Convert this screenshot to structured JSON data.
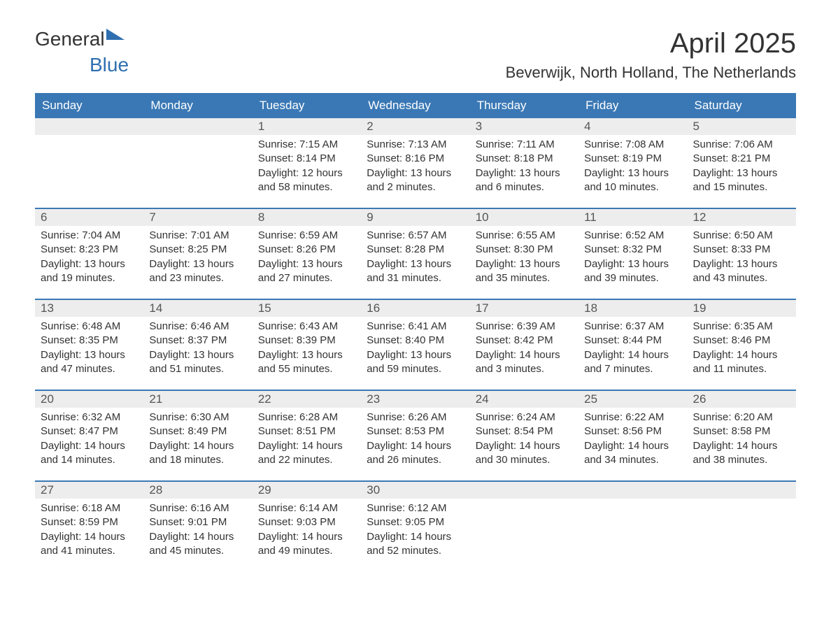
{
  "brand": {
    "part1": "General",
    "part2": "Blue"
  },
  "title": "April 2025",
  "location": "Beverwijk, North Holland, The Netherlands",
  "colors": {
    "header_bg": "#3a78b5",
    "header_text": "#ffffff",
    "daynum_bg": "#ededed",
    "text": "#333333",
    "accent": "#2f6fb0"
  },
  "day_labels": [
    "Sunday",
    "Monday",
    "Tuesday",
    "Wednesday",
    "Thursday",
    "Friday",
    "Saturday"
  ],
  "weeks": [
    [
      null,
      null,
      {
        "n": "1",
        "sr": "7:15 AM",
        "ss": "8:14 PM",
        "dl": "12 hours and 58 minutes."
      },
      {
        "n": "2",
        "sr": "7:13 AM",
        "ss": "8:16 PM",
        "dl": "13 hours and 2 minutes."
      },
      {
        "n": "3",
        "sr": "7:11 AM",
        "ss": "8:18 PM",
        "dl": "13 hours and 6 minutes."
      },
      {
        "n": "4",
        "sr": "7:08 AM",
        "ss": "8:19 PM",
        "dl": "13 hours and 10 minutes."
      },
      {
        "n": "5",
        "sr": "7:06 AM",
        "ss": "8:21 PM",
        "dl": "13 hours and 15 minutes."
      }
    ],
    [
      {
        "n": "6",
        "sr": "7:04 AM",
        "ss": "8:23 PM",
        "dl": "13 hours and 19 minutes."
      },
      {
        "n": "7",
        "sr": "7:01 AM",
        "ss": "8:25 PM",
        "dl": "13 hours and 23 minutes."
      },
      {
        "n": "8",
        "sr": "6:59 AM",
        "ss": "8:26 PM",
        "dl": "13 hours and 27 minutes."
      },
      {
        "n": "9",
        "sr": "6:57 AM",
        "ss": "8:28 PM",
        "dl": "13 hours and 31 minutes."
      },
      {
        "n": "10",
        "sr": "6:55 AM",
        "ss": "8:30 PM",
        "dl": "13 hours and 35 minutes."
      },
      {
        "n": "11",
        "sr": "6:52 AM",
        "ss": "8:32 PM",
        "dl": "13 hours and 39 minutes."
      },
      {
        "n": "12",
        "sr": "6:50 AM",
        "ss": "8:33 PM",
        "dl": "13 hours and 43 minutes."
      }
    ],
    [
      {
        "n": "13",
        "sr": "6:48 AM",
        "ss": "8:35 PM",
        "dl": "13 hours and 47 minutes."
      },
      {
        "n": "14",
        "sr": "6:46 AM",
        "ss": "8:37 PM",
        "dl": "13 hours and 51 minutes."
      },
      {
        "n": "15",
        "sr": "6:43 AM",
        "ss": "8:39 PM",
        "dl": "13 hours and 55 minutes."
      },
      {
        "n": "16",
        "sr": "6:41 AM",
        "ss": "8:40 PM",
        "dl": "13 hours and 59 minutes."
      },
      {
        "n": "17",
        "sr": "6:39 AM",
        "ss": "8:42 PM",
        "dl": "14 hours and 3 minutes."
      },
      {
        "n": "18",
        "sr": "6:37 AM",
        "ss": "8:44 PM",
        "dl": "14 hours and 7 minutes."
      },
      {
        "n": "19",
        "sr": "6:35 AM",
        "ss": "8:46 PM",
        "dl": "14 hours and 11 minutes."
      }
    ],
    [
      {
        "n": "20",
        "sr": "6:32 AM",
        "ss": "8:47 PM",
        "dl": "14 hours and 14 minutes."
      },
      {
        "n": "21",
        "sr": "6:30 AM",
        "ss": "8:49 PM",
        "dl": "14 hours and 18 minutes."
      },
      {
        "n": "22",
        "sr": "6:28 AM",
        "ss": "8:51 PM",
        "dl": "14 hours and 22 minutes."
      },
      {
        "n": "23",
        "sr": "6:26 AM",
        "ss": "8:53 PM",
        "dl": "14 hours and 26 minutes."
      },
      {
        "n": "24",
        "sr": "6:24 AM",
        "ss": "8:54 PM",
        "dl": "14 hours and 30 minutes."
      },
      {
        "n": "25",
        "sr": "6:22 AM",
        "ss": "8:56 PM",
        "dl": "14 hours and 34 minutes."
      },
      {
        "n": "26",
        "sr": "6:20 AM",
        "ss": "8:58 PM",
        "dl": "14 hours and 38 minutes."
      }
    ],
    [
      {
        "n": "27",
        "sr": "6:18 AM",
        "ss": "8:59 PM",
        "dl": "14 hours and 41 minutes."
      },
      {
        "n": "28",
        "sr": "6:16 AM",
        "ss": "9:01 PM",
        "dl": "14 hours and 45 minutes."
      },
      {
        "n": "29",
        "sr": "6:14 AM",
        "ss": "9:03 PM",
        "dl": "14 hours and 49 minutes."
      },
      {
        "n": "30",
        "sr": "6:12 AM",
        "ss": "9:05 PM",
        "dl": "14 hours and 52 minutes."
      },
      null,
      null,
      null
    ]
  ],
  "labels": {
    "sunrise": "Sunrise: ",
    "sunset": "Sunset: ",
    "daylight": "Daylight: "
  }
}
